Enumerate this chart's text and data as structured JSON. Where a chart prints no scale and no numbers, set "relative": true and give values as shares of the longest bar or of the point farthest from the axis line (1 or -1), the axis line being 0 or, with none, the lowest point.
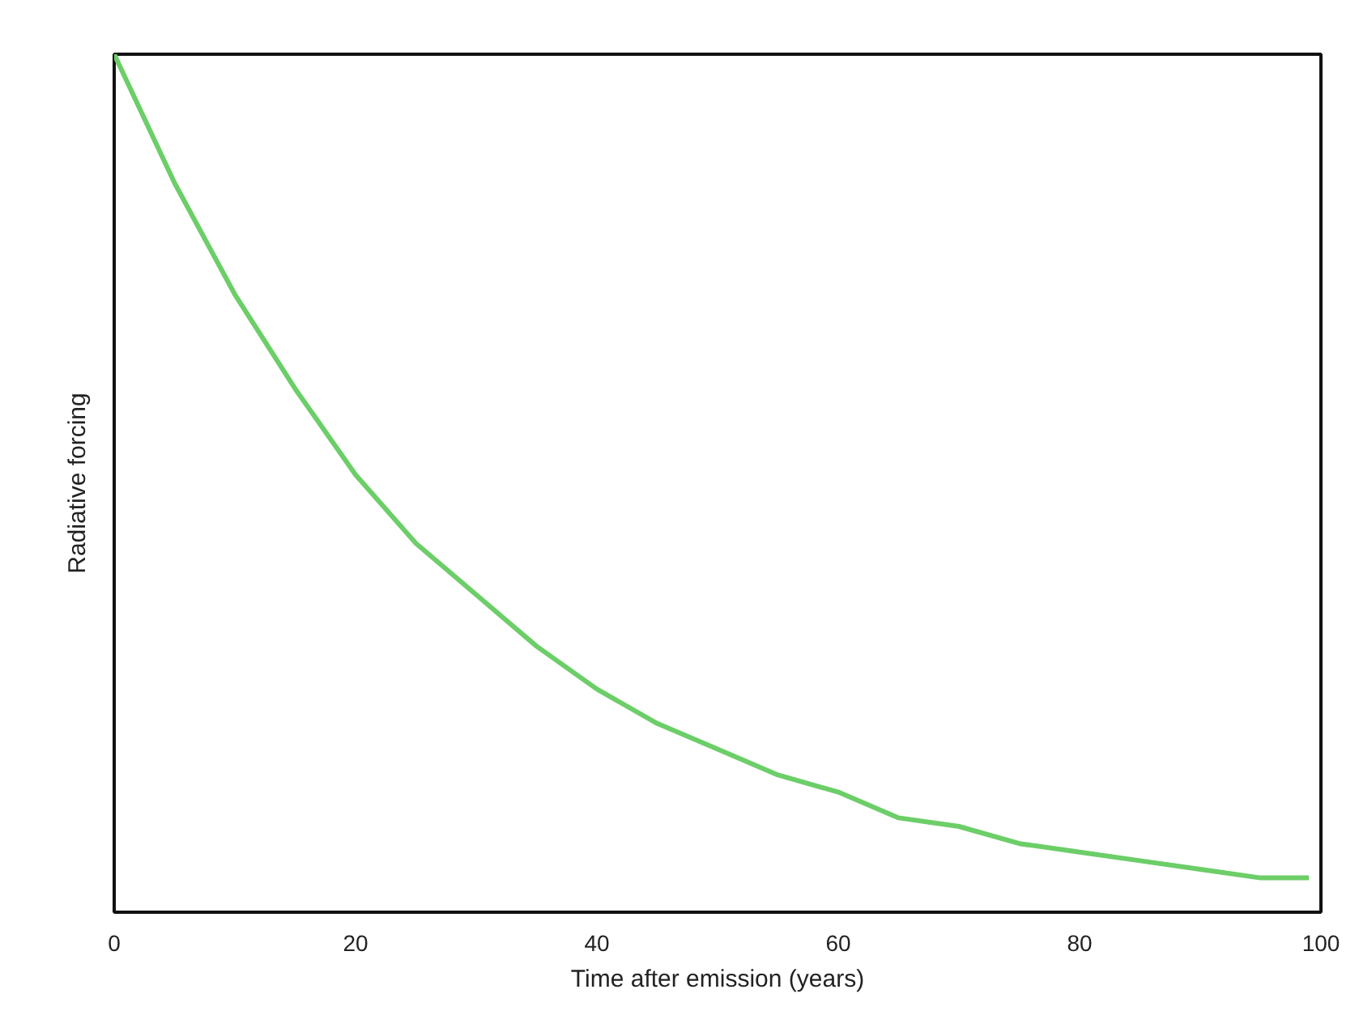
{
  "chart_data": {
    "type": "line",
    "xlabel": "Time after emission (years)",
    "ylabel": "Radiative forcing",
    "relative": true,
    "x": [
      0,
      5,
      10,
      15,
      20,
      25,
      30,
      35,
      40,
      45,
      50,
      55,
      60,
      65,
      70,
      75,
      80,
      85,
      90,
      95,
      99
    ],
    "series": [
      {
        "color": "#6cce68",
        "values": [
          1.0,
          0.85,
          0.72,
          0.61,
          0.51,
          0.43,
          0.37,
          0.31,
          0.26,
          0.22,
          0.19,
          0.16,
          0.14,
          0.11,
          0.1,
          0.08,
          0.07,
          0.06,
          0.05,
          0.04,
          0.04
        ]
      }
    ],
    "xlim": [
      0,
      100
    ],
    "xticks": [
      0,
      20,
      40,
      60,
      80,
      100
    ],
    "tick_labels": "x"
  }
}
